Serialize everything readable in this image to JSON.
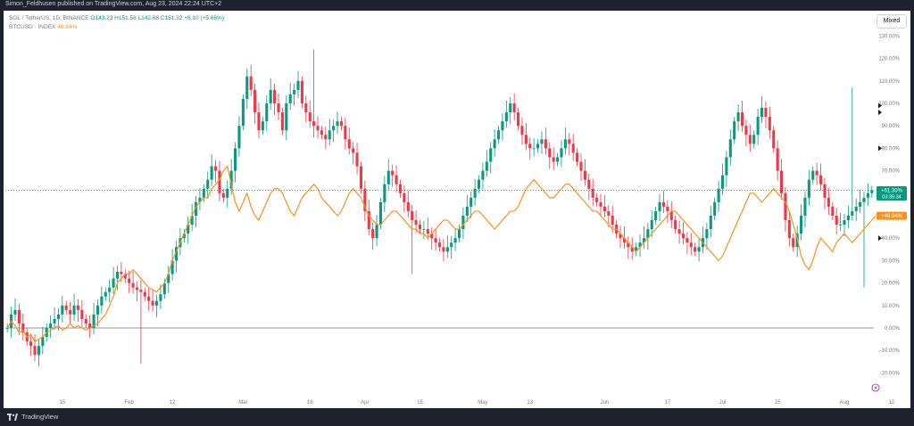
{
  "header": {
    "publisher": "Simon_Feldhusen published on TradingView.com, Aug 23, 2024 22:24 UTC+2"
  },
  "legend": {
    "symbol": "SOL / TetherUS, 1D, BINANCE",
    "ohlc": "O143.23  H151.58  L142.68  C151.32  +8.10 (+5.66%)",
    "btc_label": "BTCUSD · INDEX",
    "btc_value": "49.94%"
  },
  "controls": {
    "scale_mode": "Mixed"
  },
  "footer": {
    "brand": "TradingView"
  },
  "chart_data": {
    "type": "line",
    "title": "",
    "xlabel": "",
    "ylabel": "",
    "ylim": [
      -25,
      137
    ],
    "y_unit": "%",
    "y_ticks": [
      "130.00%",
      "120.00%",
      "110.00%",
      "100.00%",
      "90.00%",
      "80.00%",
      "70.00%",
      "60.00%",
      "50.00%",
      "40.00%",
      "30.00%",
      "20.00%",
      "10.00%",
      "0.00%",
      "-10.00%",
      "-20.00%"
    ],
    "x_ticks": [
      "15",
      "Feb",
      "12",
      "Mar",
      "18",
      "Apr",
      "15",
      "May",
      "13",
      "Jun",
      "17",
      "Jul",
      "15",
      "Aug",
      "12"
    ],
    "x_ticks_day": [
      14,
      31,
      42,
      60,
      77,
      91,
      105,
      121,
      133,
      152,
      168,
      182,
      196,
      213,
      225
    ],
    "grid": false,
    "baseline": 0,
    "price_labels": [
      {
        "text": "+61.30%",
        "sub": "03:35:34",
        "value": 61.3,
        "color": "#089981"
      },
      {
        "text": "+49.94%",
        "value": 49.94,
        "color": "#f7931a"
      }
    ],
    "series": [
      {
        "name": "SOL / TetherUS, 1D, BINANCE",
        "kind": "candlestick",
        "up_color": "#089981",
        "down_color": "#f23645",
        "closes": [
          0,
          6,
          8,
          2,
          -2,
          -6,
          -8,
          -12,
          -8,
          -4,
          0,
          2,
          4,
          6,
          10,
          8,
          6,
          10,
          8,
          4,
          2,
          0,
          6,
          10,
          14,
          16,
          18,
          22,
          25,
          24,
          22,
          20,
          18,
          17,
          16,
          14,
          12,
          10,
          12,
          15,
          20,
          24,
          30,
          36,
          40,
          42,
          46,
          50,
          56,
          58,
          62,
          66,
          72,
          70,
          60,
          58,
          62,
          70,
          80,
          90,
          102,
          112,
          106,
          96,
          88,
          92,
          100,
          106,
          100,
          96,
          88,
          100,
          104,
          106,
          110,
          100,
          96,
          92,
          90,
          88,
          86,
          84,
          88,
          90,
          92,
          90,
          84,
          80,
          78,
          72,
          62,
          52,
          44,
          40,
          46,
          56,
          64,
          70,
          68,
          64,
          60,
          56,
          52,
          48,
          46,
          44,
          44,
          42,
          40,
          38,
          36,
          34,
          36,
          38,
          40,
          44,
          50,
          54,
          58,
          62,
          66,
          70,
          74,
          80,
          84,
          88,
          92,
          96,
          100,
          96,
          90,
          86,
          82,
          80,
          80,
          82,
          84,
          80,
          76,
          74,
          76,
          80,
          84,
          82,
          78,
          74,
          70,
          66,
          62,
          58,
          56,
          54,
          52,
          50,
          46,
          42,
          40,
          38,
          36,
          34,
          36,
          38,
          40,
          44,
          48,
          52,
          56,
          54,
          52,
          48,
          44,
          42,
          40,
          38,
          36,
          34,
          36,
          40,
          44,
          50,
          56,
          62,
          68,
          76,
          84,
          92,
          96,
          90,
          86,
          82,
          86,
          94,
          98,
          94,
          88,
          80,
          70,
          60,
          48,
          40,
          36,
          42,
          50,
          58,
          66,
          70,
          68,
          64,
          58,
          54,
          50,
          46,
          46,
          48,
          50,
          52,
          54,
          56,
          58,
          60,
          61.3
        ],
        "wick_extremes": [
          {
            "day": 78,
            "high": 124
          },
          {
            "day": 103,
            "low": 24
          },
          {
            "day": 218,
            "low": 18
          },
          {
            "day": 215,
            "high": 107
          },
          {
            "day": 34,
            "low": -16
          }
        ]
      },
      {
        "name": "BTCUSD · INDEX",
        "kind": "line",
        "color": "#f7931a",
        "values": [
          0,
          3,
          1,
          -2,
          -1,
          -4,
          -3,
          -6,
          -5,
          -4,
          -2,
          -1,
          0,
          1,
          -1,
          0,
          2,
          0,
          1,
          0,
          -1,
          0,
          1,
          2,
          4,
          6,
          10,
          14,
          20,
          22,
          24,
          24,
          26,
          24,
          22,
          20,
          18,
          17,
          16,
          18,
          20,
          24,
          30,
          34,
          38,
          42,
          46,
          50,
          54,
          56,
          58,
          58,
          62,
          64,
          66,
          70,
          72,
          64,
          56,
          52,
          56,
          60,
          54,
          50,
          48,
          52,
          56,
          60,
          62,
          62,
          60,
          56,
          52,
          50,
          54,
          58,
          60,
          62,
          64,
          62,
          58,
          56,
          54,
          52,
          50,
          52,
          56,
          60,
          62,
          60,
          58,
          54,
          50,
          48,
          46,
          46,
          48,
          50,
          52,
          52,
          50,
          48,
          46,
          44,
          44,
          42,
          42,
          40,
          42,
          44,
          46,
          48,
          48,
          46,
          44,
          44,
          46,
          48,
          50,
          52,
          52,
          50,
          48,
          46,
          44,
          46,
          48,
          50,
          52,
          52,
          54,
          58,
          62,
          64,
          66,
          64,
          62,
          60,
          58,
          58,
          60,
          62,
          64,
          64,
          62,
          60,
          58,
          56,
          54,
          52,
          52,
          50,
          48,
          46,
          44,
          44,
          42,
          40,
          38,
          36,
          34,
          36,
          38,
          40,
          42,
          44,
          46,
          48,
          50,
          52,
          52,
          50,
          48,
          46,
          44,
          42,
          40,
          38,
          36,
          34,
          32,
          30,
          32,
          36,
          40,
          44,
          48,
          52,
          56,
          60,
          60,
          58,
          56,
          58,
          60,
          62,
          60,
          58,
          56,
          52,
          46,
          40,
          32,
          28,
          26,
          30,
          36,
          40,
          38,
          36,
          34,
          38,
          40,
          42,
          40,
          38,
          40,
          42,
          44,
          46,
          48,
          49.94
        ]
      }
    ]
  }
}
